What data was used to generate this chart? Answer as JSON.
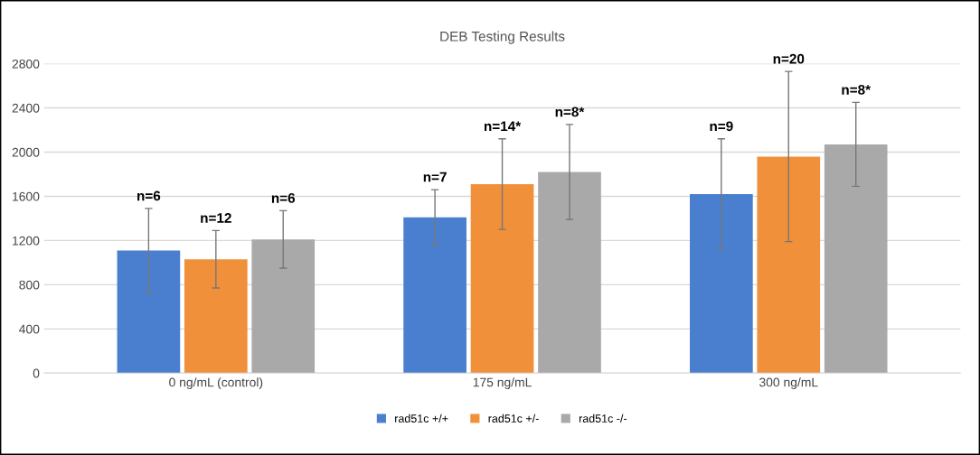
{
  "chart_data": {
    "type": "bar",
    "title": "DEB Testing Results",
    "categories": [
      "0 ng/mL (control)",
      "175 ng/mL",
      "300 ng/mL"
    ],
    "series": [
      {
        "name": "rad51c +/+",
        "color": "#4a7fcf",
        "values": [
          1110,
          1410,
          1620
        ],
        "errors": [
          380,
          250,
          500
        ]
      },
      {
        "name": "rad51c +/-",
        "color": "#f0903a",
        "values": [
          1030,
          1710,
          1960
        ],
        "errors": [
          260,
          410,
          770
        ]
      },
      {
        "name": "rad51c -/-",
        "color": "#a9a9a9",
        "values": [
          1210,
          1820,
          2070
        ],
        "errors": [
          260,
          430,
          380
        ]
      }
    ],
    "ylim": [
      0,
      2800
    ],
    "yticks": [
      0,
      400,
      800,
      1200,
      1600,
      2000,
      2400,
      2800
    ],
    "grid": "y",
    "legend": "bottom",
    "annotations": [
      "n=6",
      "n=12",
      "n=6",
      "n=7",
      "n=14*",
      "n=8*",
      "n=9",
      "n=20",
      "n=8*"
    ]
  }
}
